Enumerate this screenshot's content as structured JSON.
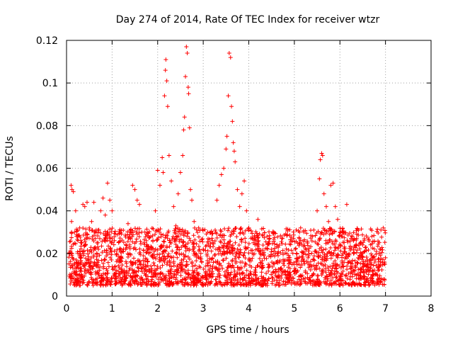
{
  "chart_data": {
    "type": "scatter",
    "title": "Day 274 of 2014, Rate Of TEC Index for receiver wtzr",
    "xlabel": "GPS time / hours",
    "ylabel": "ROTI / TECUs",
    "xlim": [
      0,
      8
    ],
    "ylim": [
      0,
      0.12
    ],
    "xticks": [
      0,
      1,
      2,
      3,
      4,
      5,
      6,
      7,
      8
    ],
    "yticks": [
      0,
      0.02,
      0.04,
      0.06,
      0.08,
      0.1,
      0.12
    ],
    "xtick_labels": [
      "0",
      "1",
      "2",
      "3",
      "4",
      "5",
      "6",
      "7",
      "8"
    ],
    "ytick_labels": [
      "0",
      "0.02",
      "0.04",
      "0.06",
      "0.08",
      "0.1",
      "0.12"
    ],
    "grid": true,
    "marker": "+",
    "color": "#ff0000",
    "series": [
      {
        "name": "ROTI",
        "points": [
          [
            0.1,
            0.052
          ],
          [
            0.12,
            0.05
          ],
          [
            0.15,
            0.049
          ],
          [
            0.11,
            0.035
          ],
          [
            0.18,
            0.03
          ],
          [
            0.2,
            0.04
          ],
          [
            0.22,
            0.028
          ],
          [
            0.25,
            0.02
          ],
          [
            0.28,
            0.015
          ],
          [
            0.3,
            0.012
          ],
          [
            0.33,
            0.025
          ],
          [
            0.36,
            0.043
          ],
          [
            0.4,
            0.042
          ],
          [
            0.45,
            0.044
          ],
          [
            0.5,
            0.032
          ],
          [
            0.55,
            0.035
          ],
          [
            0.6,
            0.044
          ],
          [
            0.65,
            0.031
          ],
          [
            0.7,
            0.022
          ],
          [
            0.75,
            0.04
          ],
          [
            0.8,
            0.046
          ],
          [
            0.85,
            0.038
          ],
          [
            0.9,
            0.053
          ],
          [
            0.95,
            0.045
          ],
          [
            1.0,
            0.04
          ],
          [
            1.05,
            0.026
          ],
          [
            1.1,
            0.02
          ],
          [
            1.15,
            0.017
          ],
          [
            1.2,
            0.013
          ],
          [
            1.3,
            0.022
          ],
          [
            1.35,
            0.034
          ],
          [
            1.4,
            0.03
          ],
          [
            1.45,
            0.052
          ],
          [
            1.5,
            0.05
          ],
          [
            1.55,
            0.045
          ],
          [
            1.6,
            0.043
          ],
          [
            1.65,
            0.03
          ],
          [
            1.7,
            0.025
          ],
          [
            1.8,
            0.02
          ],
          [
            1.9,
            0.018
          ],
          [
            1.95,
            0.04
          ],
          [
            2.0,
            0.059
          ],
          [
            2.05,
            0.052
          ],
          [
            2.1,
            0.065
          ],
          [
            2.12,
            0.058
          ],
          [
            2.15,
            0.094
          ],
          [
            2.17,
            0.106
          ],
          [
            2.18,
            0.111
          ],
          [
            2.2,
            0.101
          ],
          [
            2.22,
            0.089
          ],
          [
            2.25,
            0.066
          ],
          [
            2.3,
            0.054
          ],
          [
            2.35,
            0.042
          ],
          [
            2.4,
            0.033
          ],
          [
            2.45,
            0.048
          ],
          [
            2.5,
            0.058
          ],
          [
            2.55,
            0.066
          ],
          [
            2.57,
            0.078
          ],
          [
            2.59,
            0.084
          ],
          [
            2.61,
            0.103
          ],
          [
            2.63,
            0.117
          ],
          [
            2.65,
            0.114
          ],
          [
            2.67,
            0.098
          ],
          [
            2.68,
            0.095
          ],
          [
            2.7,
            0.079
          ],
          [
            2.72,
            0.05
          ],
          [
            2.75,
            0.045
          ],
          [
            2.8,
            0.035
          ],
          [
            2.9,
            0.032
          ],
          [
            3.0,
            0.022
          ],
          [
            3.1,
            0.03
          ],
          [
            3.2,
            0.025
          ],
          [
            3.3,
            0.045
          ],
          [
            3.35,
            0.052
          ],
          [
            3.4,
            0.057
          ],
          [
            3.45,
            0.06
          ],
          [
            3.5,
            0.069
          ],
          [
            3.52,
            0.075
          ],
          [
            3.55,
            0.094
          ],
          [
            3.57,
            0.114
          ],
          [
            3.6,
            0.112
          ],
          [
            3.62,
            0.089
          ],
          [
            3.64,
            0.082
          ],
          [
            3.66,
            0.072
          ],
          [
            3.68,
            0.068
          ],
          [
            3.7,
            0.063
          ],
          [
            3.75,
            0.05
          ],
          [
            3.8,
            0.042
          ],
          [
            3.85,
            0.048
          ],
          [
            3.9,
            0.054
          ],
          [
            3.95,
            0.04
          ],
          [
            4.0,
            0.032
          ],
          [
            4.1,
            0.025
          ],
          [
            4.2,
            0.036
          ],
          [
            4.3,
            0.02
          ],
          [
            4.4,
            0.028
          ],
          [
            4.5,
            0.022
          ],
          [
            4.6,
            0.016
          ],
          [
            4.7,
            0.013
          ],
          [
            4.8,
            0.01
          ],
          [
            4.9,
            0.018
          ],
          [
            5.0,
            0.012
          ],
          [
            5.1,
            0.015
          ],
          [
            5.2,
            0.02
          ],
          [
            5.3,
            0.018
          ],
          [
            5.4,
            0.028
          ],
          [
            5.5,
            0.04
          ],
          [
            5.55,
            0.055
          ],
          [
            5.57,
            0.064
          ],
          [
            5.6,
            0.067
          ],
          [
            5.62,
            0.066
          ],
          [
            5.65,
            0.048
          ],
          [
            5.7,
            0.042
          ],
          [
            5.75,
            0.035
          ],
          [
            5.8,
            0.052
          ],
          [
            5.85,
            0.053
          ],
          [
            5.9,
            0.042
          ],
          [
            5.95,
            0.036
          ],
          [
            6.0,
            0.03
          ],
          [
            6.05,
            0.028
          ],
          [
            6.1,
            0.023
          ],
          [
            6.15,
            0.043
          ],
          [
            6.2,
            0.02
          ],
          [
            6.3,
            0.026
          ],
          [
            6.4,
            0.018
          ],
          [
            6.5,
            0.024
          ],
          [
            6.6,
            0.015
          ],
          [
            6.7,
            0.028
          ],
          [
            6.8,
            0.021
          ],
          [
            6.9,
            0.031
          ],
          [
            6.95,
            0.032
          ],
          [
            7.0,
            0.018
          ]
        ]
      }
    ],
    "noise_band": {
      "x_range": [
        0.05,
        7.0
      ],
      "y_range": [
        0.005,
        0.032
      ],
      "note": "dense band of low-ROTI points across the whole day"
    }
  }
}
